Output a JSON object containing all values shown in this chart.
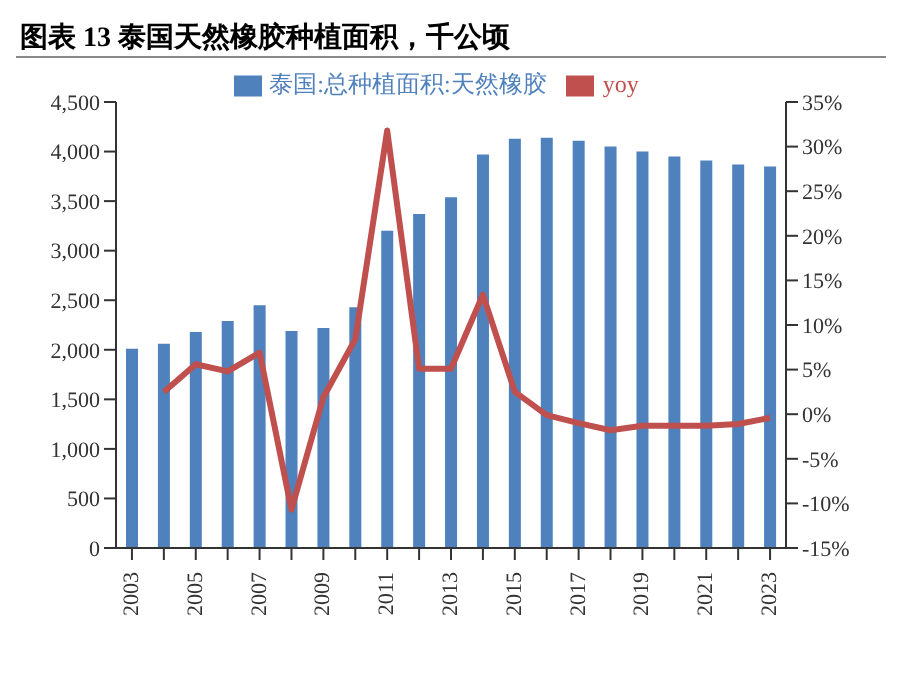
{
  "chart_data": {
    "type": "bar",
    "title": "图表 13  泰国天然橡胶种植面积，千公顷",
    "categories": [
      "2003",
      null,
      "2005",
      null,
      "2007",
      null,
      "2009",
      null,
      "2011",
      null,
      "2013",
      null,
      "2015",
      null,
      "2017",
      null,
      "2019",
      null,
      "2021",
      null,
      "2023"
    ],
    "series": [
      {
        "name": "泰国:总种植面积:天然橡胶",
        "color": "#4f81bd",
        "values": [
          2010,
          2060,
          2180,
          2290,
          2450,
          2190,
          2220,
          2430,
          3200,
          3370,
          3540,
          3970,
          4130,
          4140,
          4110,
          4050,
          4000,
          3950,
          3910,
          3870,
          3850
        ]
      },
      {
        "name": "yoy",
        "type": "line",
        "axis": "y2",
        "color": "#c0504d",
        "values": [
          null,
          2.5,
          5.6,
          4.8,
          6.9,
          -10.7,
          1.9,
          8.4,
          31.8,
          5.1,
          5.1,
          13.4,
          2.5,
          -0.1,
          -1,
          -1.8,
          -1.3,
          -1.3,
          -1.3,
          -1.1,
          -0.4
        ]
      }
    ],
    "ylim": [
      0,
      4500
    ],
    "yticks": [
      0,
      500,
      {
        "value": 1000,
        "label": "1,000"
      },
      {
        "value": 1500,
        "label": "1,500"
      },
      {
        "value": 2000,
        "label": "2,000"
      },
      {
        "value": 2500,
        "label": "2,500"
      },
      {
        "value": 3000,
        "label": "3,000"
      },
      {
        "value": 3500,
        "label": "3,500"
      },
      {
        "value": 4000,
        "label": "4,000"
      },
      {
        "value": 4500,
        "label": "4,500"
      }
    ],
    "y2lim": [
      -15,
      35
    ],
    "y2ticks": [
      {
        "value": -15,
        "label": "-15%"
      },
      {
        "value": -10,
        "label": "-10%"
      },
      {
        "value": -5,
        "label": "-5%"
      },
      {
        "value": 0,
        "label": "0%"
      },
      {
        "value": 5,
        "label": "5%"
      },
      {
        "value": 10,
        "label": "10%"
      },
      {
        "value": 15,
        "label": "15%"
      },
      {
        "value": 20,
        "label": "20%"
      },
      {
        "value": 25,
        "label": "25%"
      },
      {
        "value": 30,
        "label": "30%"
      },
      {
        "value": 35,
        "label": "35%"
      }
    ],
    "legend": "top",
    "grid": false,
    "marker": "none"
  }
}
